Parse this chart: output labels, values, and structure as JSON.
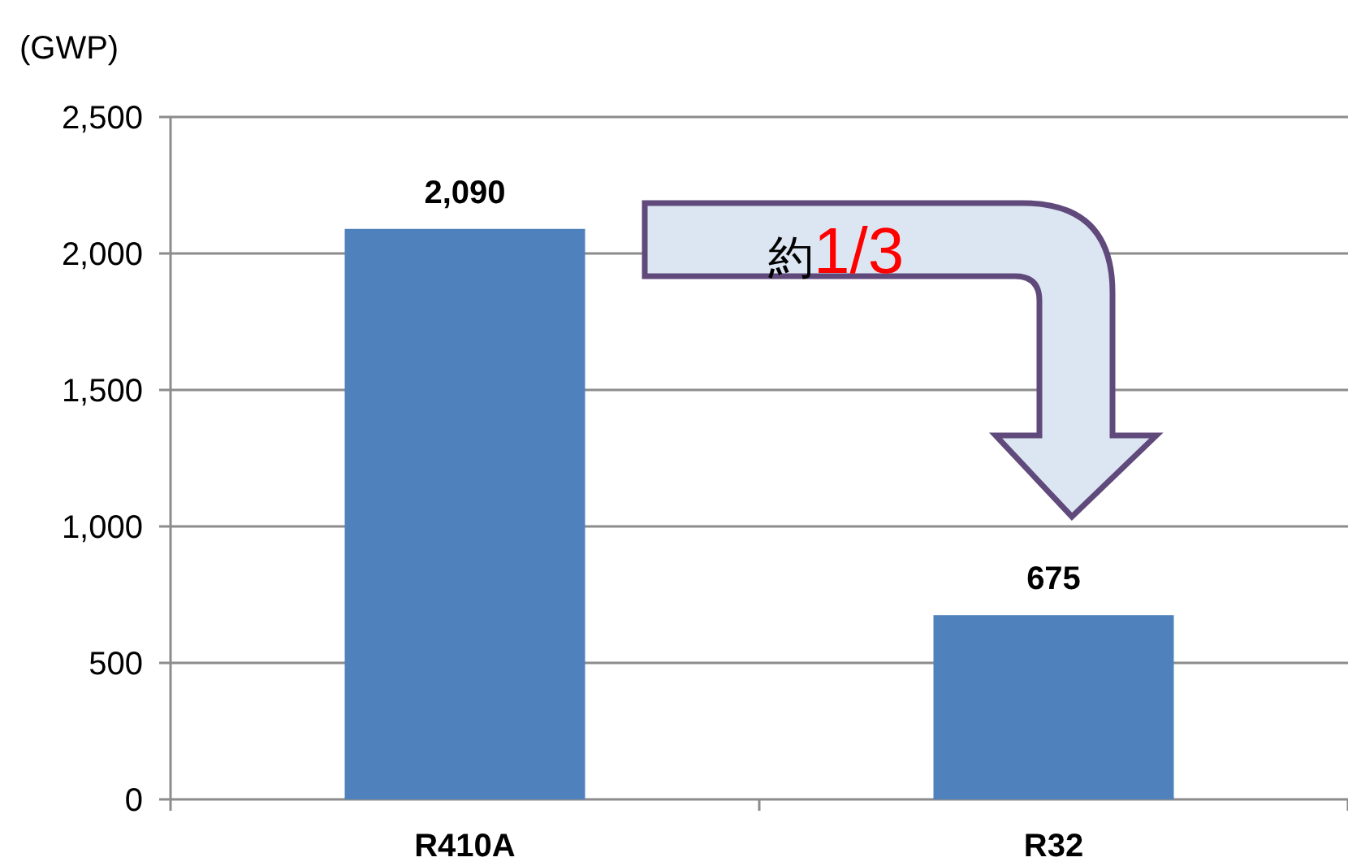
{
  "chart_data": {
    "type": "bar",
    "ylabel": "(GWP)",
    "categories": [
      "R410A",
      "R32"
    ],
    "values": [
      2090,
      675
    ],
    "value_labels": [
      "2,090",
      "675"
    ],
    "color": "#4f81bd",
    "ylim": [
      0,
      2500
    ],
    "yticks": [
      0,
      500,
      {
        "value": 1000,
        "label": "1,000"
      },
      {
        "value": 1500,
        "label": "1,500"
      },
      {
        "value": 2000,
        "label": "2,000"
      },
      {
        "value": 2500,
        "label": "2,500"
      }
    ],
    "grid": "y",
    "annotations": [
      "約1/3"
    ]
  }
}
